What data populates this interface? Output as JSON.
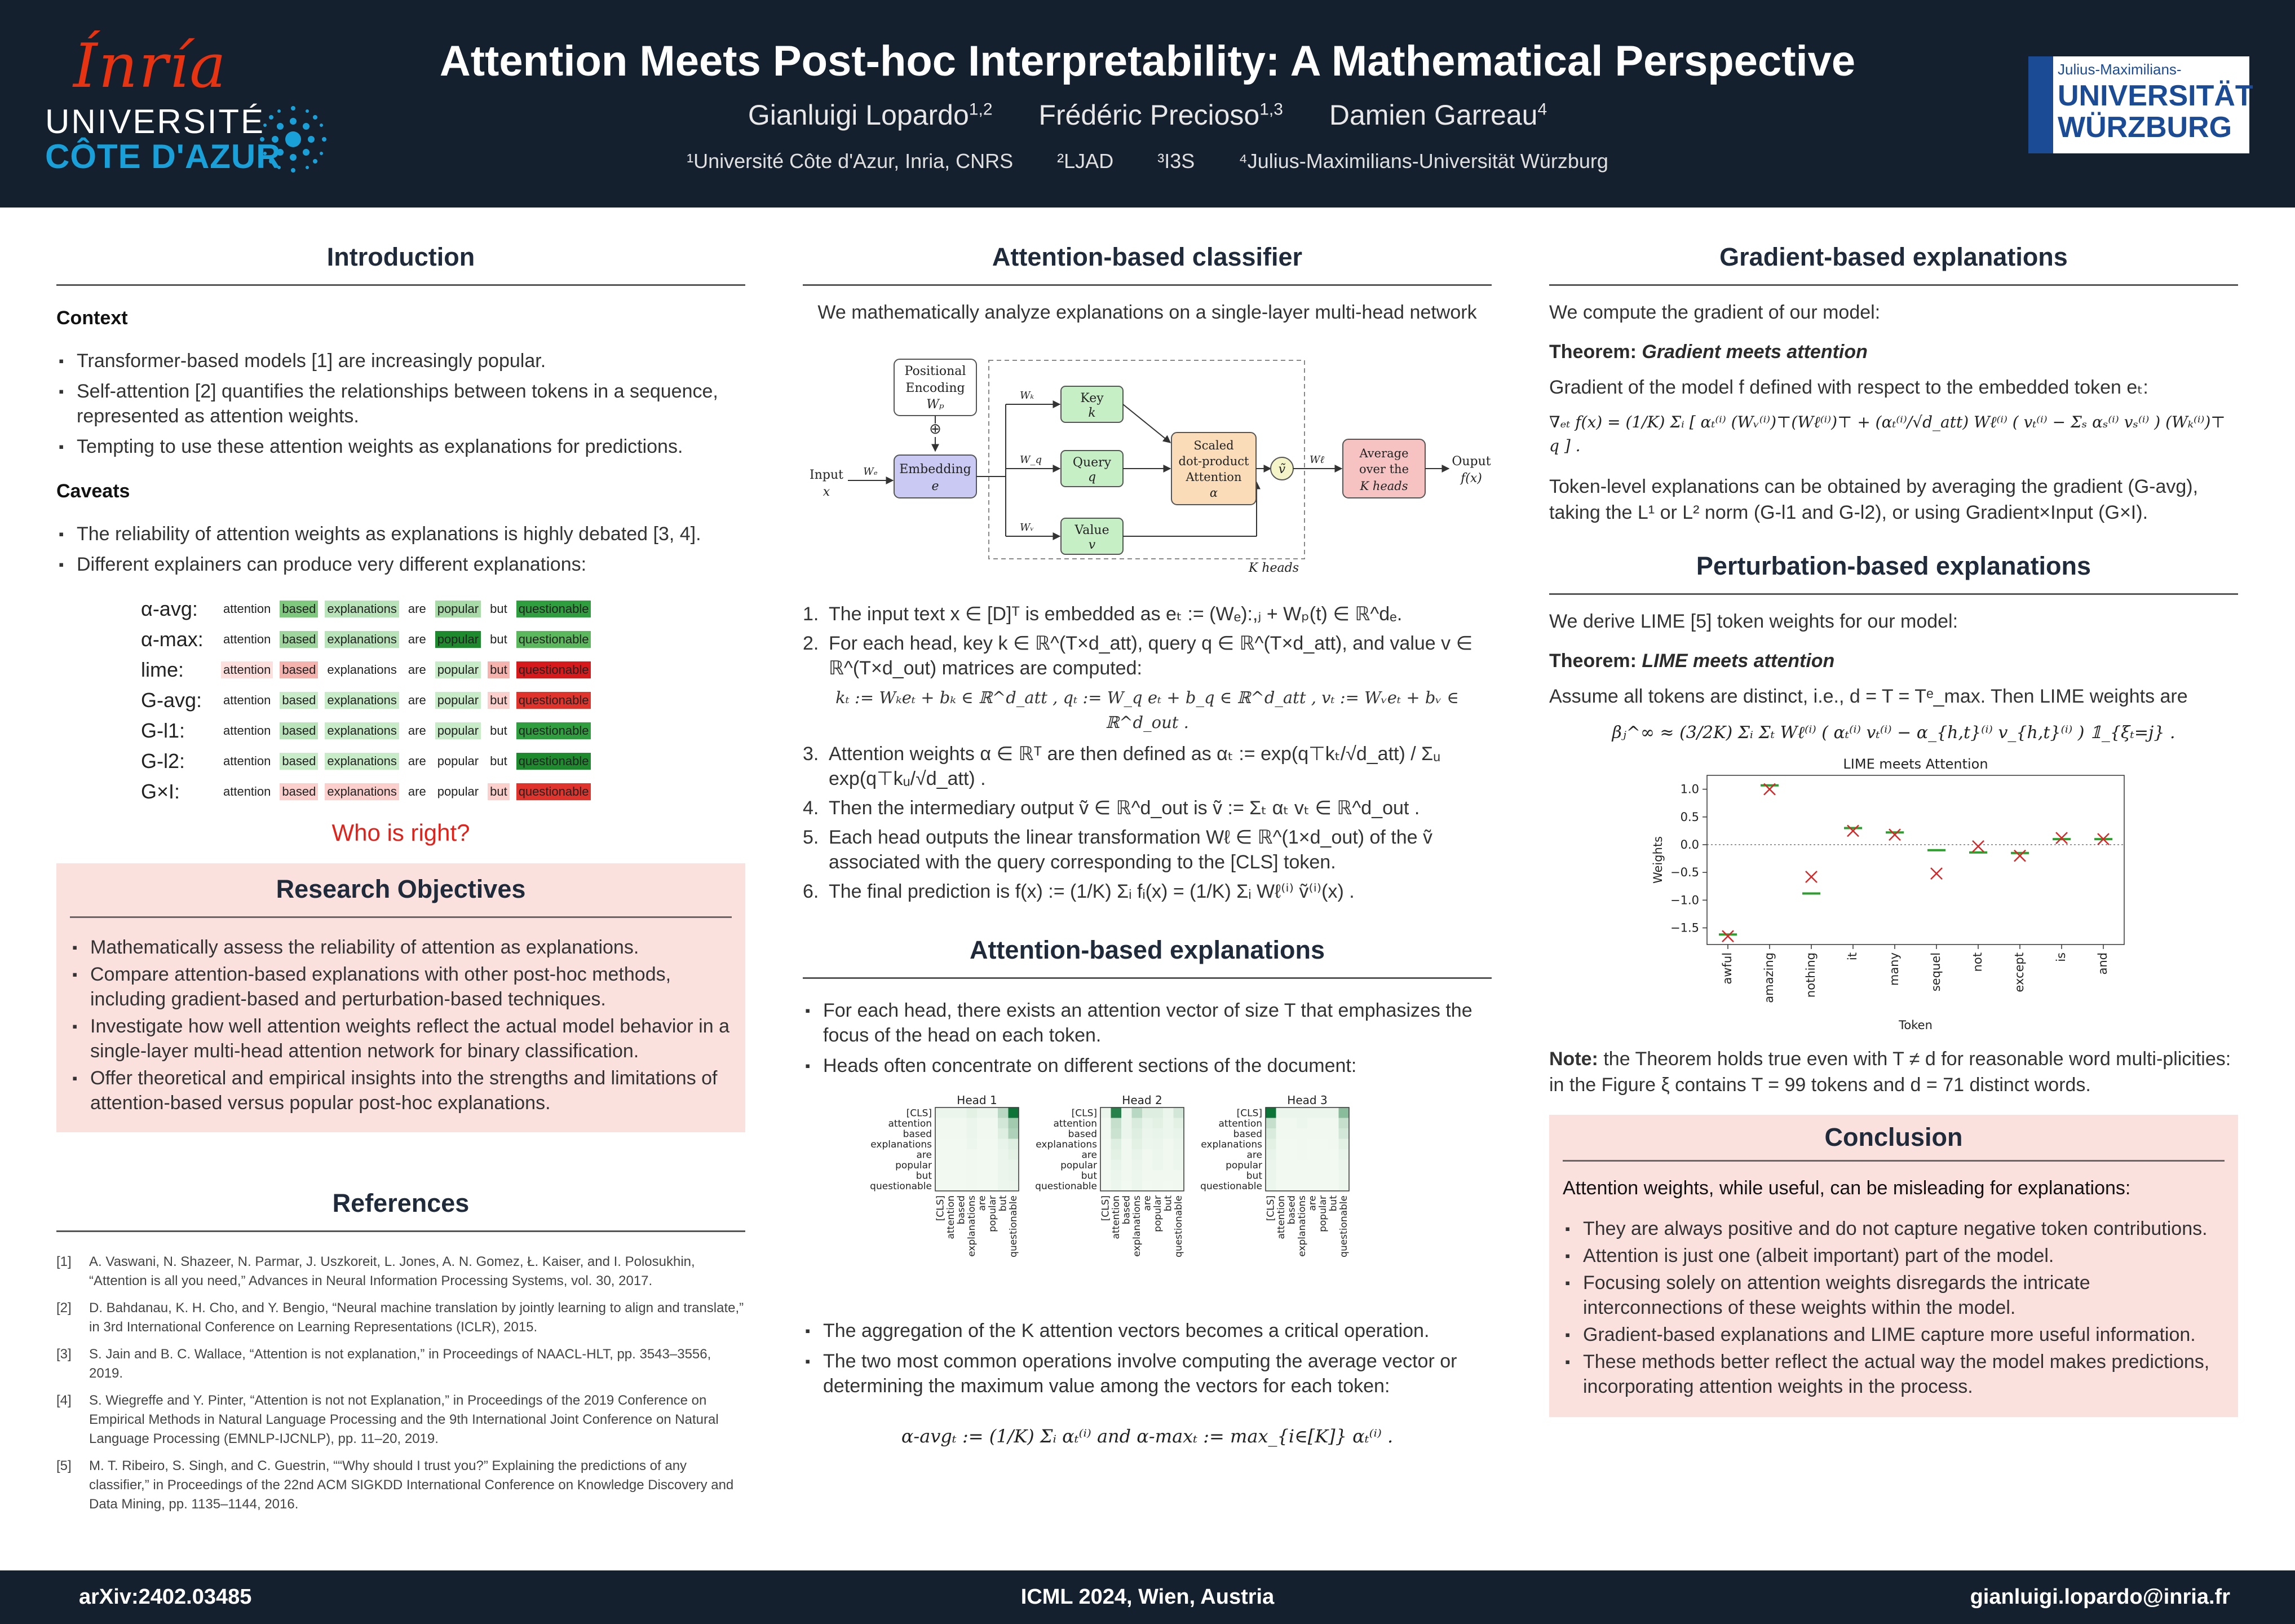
{
  "header": {
    "logo_inria": "Ínría",
    "logo_uca_line1": "UNIVERSITÉ",
    "logo_uca_line2": "CÔTE D'AZUR",
    "title": "Attention Meets Post-hoc Interpretability: A Mathematical Perspective",
    "authors": [
      {
        "name": "Gianluigi Lopardo",
        "sup": "1,2"
      },
      {
        "name": "Frédéric Precioso",
        "sup": "1,3"
      },
      {
        "name": "Damien Garreau",
        "sup": "4"
      }
    ],
    "affiliations": [
      "¹Université Côte d'Azur, Inria, CNRS",
      "²LJAD",
      "³I3S",
      "⁴Julius-Maximilians-Universität Würzburg"
    ],
    "logo_wu_top": "Julius-Maximilians-",
    "logo_wu_mid": "UNIVERSITÄT",
    "logo_wu_bot": "WÜRZBURG"
  },
  "footer": {
    "arxiv": "arXiv:2402.03485",
    "venue": "ICML 2024, Wien, Austria",
    "email": "gianluigi.lopardo@inria.fr"
  },
  "intro": {
    "title": "Introduction",
    "context_title": "Context",
    "context_bullets": [
      "Transformer-based models [1] are increasingly popular.",
      "Self-attention [2] quantifies the relationships between tokens in a sequence, represented as attention weights.",
      "Tempting to use these attention weights as explanations for predictions."
    ],
    "caveats_title": "Caveats",
    "caveats_bullets": [
      "The reliability of attention weights as explanations is highly debated [3, 4].",
      "Different explainers can produce very different explanations:"
    ],
    "tokens": [
      "attention",
      "based",
      "explanations",
      "are",
      "popular",
      "but",
      "questionable"
    ],
    "explainers": [
      {
        "label": "α-avg:",
        "colors": [
          "#ffffff",
          "#7fc97f",
          "#b9e3b9",
          "#ffffff",
          "#a8dba8",
          "#ffffff",
          "#2e9e3e"
        ]
      },
      {
        "label": "α-max:",
        "colors": [
          "#ffffff",
          "#9ed69e",
          "#b9e3b9",
          "#ffffff",
          "#1d8a2e",
          "#ffffff",
          "#5cb85c"
        ]
      },
      {
        "label": "lime:",
        "colors": [
          "#fde0dd",
          "#f6b3ae",
          "#ffffff",
          "#ffffff",
          "#c8ebc8",
          "#f6b3ae",
          "#d7191c"
        ]
      },
      {
        "label": "G-avg:",
        "colors": [
          "#ffffff",
          "#c8ebc8",
          "#c8ebc8",
          "#ffffff",
          "#c8ebc8",
          "#fbd0cc",
          "#e0332c"
        ]
      },
      {
        "label": "G-l1:",
        "colors": [
          "#ffffff",
          "#b9e3b9",
          "#c8ebc8",
          "#ffffff",
          "#c8ebc8",
          "#ffffff",
          "#2e9e3e"
        ]
      },
      {
        "label": "G-l2:",
        "colors": [
          "#ffffff",
          "#c8ebc8",
          "#c8ebc8",
          "#ffffff",
          "#ffffff",
          "#ffffff",
          "#1d8a2e"
        ]
      },
      {
        "label": "G×I:",
        "colors": [
          "#ffffff",
          "#fbd0cc",
          "#fbd0cc",
          "#ffffff",
          "#ffffff",
          "#fbd0cc",
          "#e0332c"
        ]
      }
    ],
    "who_is_right": "Who is right?"
  },
  "objectives": {
    "title": "Research Objectives",
    "bullets": [
      "Mathematically assess the reliability of attention as explanations.",
      "Compare attention-based explanations with other post-hoc methods, including gradient-based and perturbation-based techniques.",
      "Investigate how well attention weights reflect the actual model behavior in a single-layer multi-head attention network for binary classification.",
      "Offer theoretical and empirical insights into the strengths and limitations of attention-based versus popular post-hoc explanations."
    ]
  },
  "references": {
    "title": "References",
    "items": [
      {
        "num": "[1]",
        "text": "A. Vaswani, N. Shazeer, N. Parmar, J. Uszkoreit, L. Jones, A. N. Gomez, Ł. Kaiser, and I. Polosukhin, “Attention is all you need,” Advances in Neural Information Processing Systems, vol. 30, 2017."
      },
      {
        "num": "[2]",
        "text": "D. Bahdanau, K. H. Cho, and Y. Bengio, “Neural machine translation by jointly learning to align and translate,” in 3rd International Conference on Learning Representations (ICLR), 2015."
      },
      {
        "num": "[3]",
        "text": "S. Jain and B. C. Wallace, “Attention is not explanation,” in Proceedings of NAACL-HLT, pp. 3543–3556, 2019."
      },
      {
        "num": "[4]",
        "text": "S. Wiegreffe and Y. Pinter, “Attention is not not Explanation,” in Proceedings of the 2019 Conference on Empirical Methods in Natural Language Processing and the 9th International Joint Conference on Natural Language Processing (EMNLP-IJCNLP), pp. 11–20, 2019."
      },
      {
        "num": "[5]",
        "text": "M. T. Ribeiro, S. Singh, and C. Guestrin, ““Why should I trust you?” Explaining the predictions of any classifier,” in Proceedings of the 22nd ACM SIGKDD International Conference on Knowledge Discovery and Data Mining, pp. 1135–1144, 2016."
      }
    ]
  },
  "classifier": {
    "title": "Attention-based classifier",
    "intro": "We mathematically analyze explanations on a single-layer multi-head network",
    "diagram": {
      "pos_enc": [
        "Positional",
        "Encoding",
        "Wₚ"
      ],
      "input": [
        "Input",
        "x"
      ],
      "embedding": [
        "Embedding",
        "e"
      ],
      "key": [
        "Key",
        "k"
      ],
      "query": [
        "Query",
        "q"
      ],
      "value": [
        "Value",
        "v"
      ],
      "sdpa": [
        "Scaled",
        "dot-product",
        "Attention",
        "α"
      ],
      "vtilde": "ṽ",
      "average": [
        "Average",
        "over the",
        "K heads"
      ],
      "output": [
        "Ouput",
        "f(x)"
      ],
      "k_heads": "K heads",
      "plus": "⊕",
      "we": "Wₑ",
      "wk": "Wₖ",
      "wq": "W_q",
      "wv": "Wᵥ",
      "wl": "Wℓ"
    },
    "steps": [
      {
        "n": "1.",
        "text": "The input text x ∈ [D]ᵀ is embedded as eₜ := (Wₑ):,ⱼ + Wₚ(t) ∈ ℝ^dₑ."
      },
      {
        "n": "2.",
        "text": "For each head, key k ∈ ℝ^(T×d_att), query q ∈ ℝ^(T×d_att), and value v ∈ ℝ^(T×d_out) matrices are computed:"
      },
      {
        "n": "",
        "text": "kₜ := Wₖeₜ + bₖ ∈ ℝ^d_att ,    qₜ := W_q eₜ + b_q ∈ ℝ^d_att ,    vₜ := Wᵥeₜ + bᵥ ∈ ℝ^d_out ."
      },
      {
        "n": "3.",
        "text": "Attention weights α ∈ ℝᵀ are then defined as αₜ := exp(q⊤kₜ/√d_att) / Σᵤ exp(q⊤kᵤ/√d_att) ."
      },
      {
        "n": "4.",
        "text": "Then the intermediary output ṽ ∈ ℝ^d_out is ṽ := Σₜ αₜ vₜ ∈ ℝ^d_out ."
      },
      {
        "n": "5.",
        "text": "Each head outputs the linear transformation Wℓ ∈ ℝ^(1×d_out) of the ṽ associated with the query corresponding to the [CLS] token."
      },
      {
        "n": "6.",
        "text": "The final prediction is f(x) := (1/K) Σᵢ fᵢ(x) = (1/K) Σᵢ Wℓ⁽ⁱ⁾ ṽ⁽ⁱ⁾(x) ."
      }
    ]
  },
  "attn_expl": {
    "title": "Attention-based explanations",
    "bullets": [
      "For each head, there exists an attention vector of size T that emphasizes the focus of the head on each token.",
      "Heads often concentrate on different sections of the document:"
    ],
    "heatmap_tokens": [
      "[CLS]",
      "attention",
      "based",
      "explanations",
      "are",
      "popular",
      "but",
      "questionable"
    ],
    "heads": [
      {
        "title": "Head 1",
        "cells": [
          [
            0.05,
            0.05,
            0.05,
            0.08,
            0.05,
            0.05,
            0.25,
            0.95
          ],
          [
            0.03,
            0.03,
            0.03,
            0.05,
            0.03,
            0.03,
            0.15,
            0.35
          ],
          [
            0.03,
            0.03,
            0.03,
            0.05,
            0.03,
            0.03,
            0.1,
            0.3
          ],
          [
            0.02,
            0.02,
            0.02,
            0.04,
            0.02,
            0.02,
            0.06,
            0.1
          ],
          [
            0.02,
            0.02,
            0.02,
            0.03,
            0.02,
            0.02,
            0.05,
            0.08
          ],
          [
            0.02,
            0.02,
            0.02,
            0.03,
            0.02,
            0.02,
            0.05,
            0.06
          ],
          [
            0.02,
            0.02,
            0.02,
            0.03,
            0.02,
            0.02,
            0.05,
            0.06
          ],
          [
            0.02,
            0.02,
            0.02,
            0.03,
            0.02,
            0.02,
            0.04,
            0.05
          ]
        ]
      },
      {
        "title": "Head 2",
        "cells": [
          [
            0.05,
            0.85,
            0.05,
            0.25,
            0.1,
            0.1,
            0.05,
            0.15
          ],
          [
            0.03,
            0.2,
            0.05,
            0.12,
            0.06,
            0.08,
            0.04,
            0.08
          ],
          [
            0.03,
            0.18,
            0.05,
            0.1,
            0.05,
            0.06,
            0.04,
            0.06
          ],
          [
            0.02,
            0.1,
            0.03,
            0.08,
            0.04,
            0.05,
            0.03,
            0.05
          ],
          [
            0.02,
            0.08,
            0.03,
            0.06,
            0.03,
            0.04,
            0.03,
            0.04
          ],
          [
            0.02,
            0.06,
            0.03,
            0.05,
            0.03,
            0.04,
            0.03,
            0.04
          ],
          [
            0.02,
            0.05,
            0.03,
            0.04,
            0.03,
            0.03,
            0.03,
            0.03
          ],
          [
            0.02,
            0.04,
            0.02,
            0.04,
            0.02,
            0.03,
            0.02,
            0.03
          ]
        ]
      },
      {
        "title": "Head 3",
        "cells": [
          [
            0.95,
            0.05,
            0.05,
            0.05,
            0.05,
            0.05,
            0.05,
            0.45
          ],
          [
            0.2,
            0.03,
            0.03,
            0.04,
            0.03,
            0.03,
            0.03,
            0.2
          ],
          [
            0.12,
            0.03,
            0.03,
            0.03,
            0.03,
            0.03,
            0.03,
            0.15
          ],
          [
            0.08,
            0.02,
            0.02,
            0.03,
            0.02,
            0.02,
            0.03,
            0.08
          ],
          [
            0.06,
            0.02,
            0.02,
            0.03,
            0.02,
            0.02,
            0.02,
            0.06
          ],
          [
            0.05,
            0.02,
            0.02,
            0.02,
            0.02,
            0.02,
            0.02,
            0.05
          ],
          [
            0.05,
            0.02,
            0.02,
            0.02,
            0.02,
            0.02,
            0.02,
            0.04
          ],
          [
            0.04,
            0.02,
            0.02,
            0.02,
            0.02,
            0.02,
            0.02,
            0.04
          ]
        ]
      }
    ],
    "bullets2": [
      "The aggregation of the K attention vectors becomes a critical operation.",
      "The two most common operations involve computing the average vector or determining the maximum value among the vectors for each token:"
    ],
    "formula": "α-avgₜ := (1/K) Σᵢ αₜ⁽ⁱ⁾    and    α-maxₜ := max_{i∈[K]} αₜ⁽ⁱ⁾ ."
  },
  "gradient": {
    "title": "Gradient-based explanations",
    "intro": "We compute the gradient of our model:",
    "theorem_label": "Theorem:",
    "theorem_name": "Gradient meets attention",
    "statement": "Gradient of the model f defined with respect to the embedded token eₜ:",
    "formula": "∇ₑₜ f(x) = (1/K) Σᵢ [ αₜ⁽ⁱ⁾ (Wᵥ⁽ⁱ⁾)⊤(Wℓ⁽ⁱ⁾)⊤ + (αₜ⁽ⁱ⁾/√d_att) Wℓ⁽ⁱ⁾ ( vₜ⁽ⁱ⁾ − Σₛ αₛ⁽ⁱ⁾ vₛ⁽ⁱ⁾ ) (Wₖ⁽ⁱ⁾)⊤ q ] .",
    "after": "Token-level explanations can be obtained by averaging the gradient (G-avg), taking the L¹ or L² norm (G-l1 and G-l2), or using Gradient×Input (G×I)."
  },
  "perturbation": {
    "title": "Perturbation-based explanations",
    "intro": "We derive LIME [5] token weights for our model:",
    "theorem_label": "Theorem:",
    "theorem_name": "LIME meets attention",
    "statement": "Assume all tokens are distinct, i.e., d = T = Tᵉ_max. Then LIME weights are",
    "formula": "βⱼ^∞ ≈ (3/2K) Σᵢ Σₜ Wℓ⁽ⁱ⁾ ( αₜ⁽ⁱ⁾ vₜ⁽ⁱ⁾ − α_{h,t}⁽ⁱ⁾ v_{h,t}⁽ⁱ⁾ ) 𝟙_{ξₜ=j} .",
    "note_label": "Note:",
    "note": "the Theorem holds true even with T ≠ d for reasonable word multi-plicities: in the Figure ξ contains T = 99 tokens and d = 71 distinct words."
  },
  "chart_data": {
    "type": "scatter",
    "title": "LIME meets Attention",
    "xlabel": "Token",
    "ylabel": "Weights",
    "categories": [
      "awful",
      "amazing",
      "nothing",
      "it",
      "many",
      "sequel",
      "not",
      "except",
      "is",
      "and"
    ],
    "ylim": [
      -1.8,
      1.25
    ],
    "yticks": [
      1.0,
      0.5,
      0.0,
      -0.5,
      -1.0,
      -1.5
    ],
    "ytick_labels": [
      "1.0",
      "0.5",
      "0.0",
      "−0.5",
      "−1.0",
      "−1.5"
    ],
    "series": [
      {
        "marker": "bar",
        "color": "#2ca02c",
        "values": [
          -1.62,
          1.07,
          -0.88,
          0.3,
          0.22,
          -0.1,
          -0.14,
          -0.15,
          0.1,
          0.1
        ]
      },
      {
        "marker": "x",
        "color": "#d62728",
        "values": [
          -1.65,
          1.0,
          -0.58,
          0.25,
          0.18,
          -0.52,
          -0.03,
          -0.2,
          0.12,
          0.1
        ]
      }
    ]
  },
  "conclusion": {
    "title": "Conclusion",
    "lead": "Attention weights, while useful, can be misleading for explanations:",
    "bullets": [
      "They are always positive and do not capture negative token contributions.",
      "Attention is just one (albeit important) part of the model.",
      "Focusing solely on attention weights disregards the intricate interconnections of these weights within the model.",
      "Gradient-based explanations and LIME capture more useful information.",
      "These methods better reflect the actual way the model makes predictions, incorporating attention weights in the process."
    ]
  }
}
